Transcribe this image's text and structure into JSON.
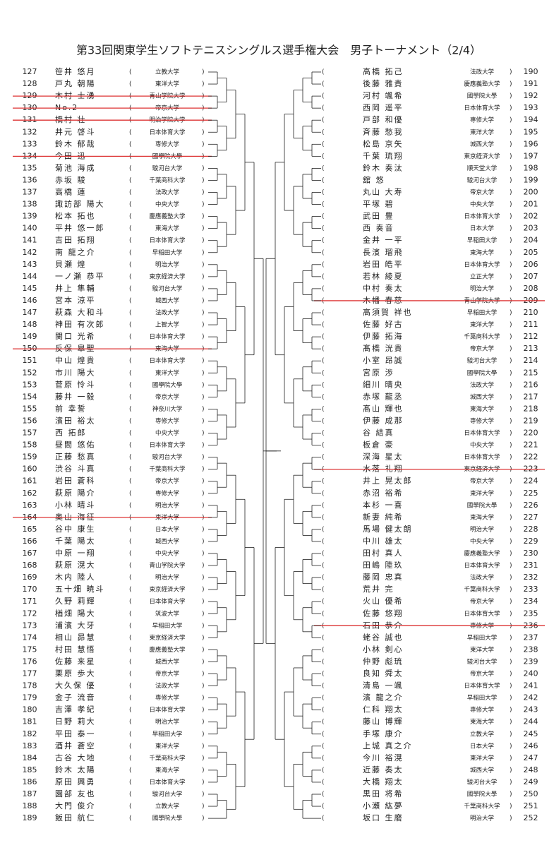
{
  "title": "第33回関東学生ソフトテニスシングルス選手権大会　男子トーナメント（2/4）",
  "left": [
    {
      "no": 127,
      "name": "笹井 悠月",
      "school": "立教大学"
    },
    {
      "no": 128,
      "name": "戸丸 朝陽",
      "school": "東洋大学"
    },
    {
      "no": 129,
      "name": "木村 士湧",
      "school": "青山学院大学",
      "struck": true
    },
    {
      "no": 130,
      "name": "No.2",
      "school": "帝京大学",
      "struck": true
    },
    {
      "no": 131,
      "name": "橋村 壮",
      "school": "明治学院大学",
      "struck": true
    },
    {
      "no": 132,
      "name": "井元 啓斗",
      "school": "日本体育大学"
    },
    {
      "no": 133,
      "name": "鈴木 郁哉",
      "school": "専修大学"
    },
    {
      "no": 134,
      "name": "今田 迅",
      "school": "國學院大學",
      "struck": true
    },
    {
      "no": 135,
      "name": "菊池 海成",
      "school": "駿河台大学"
    },
    {
      "no": 136,
      "name": "赤坂 駿",
      "school": "千葉商科大学"
    },
    {
      "no": 137,
      "name": "高橋 蓮",
      "school": "法政大学"
    },
    {
      "no": 138,
      "name": "諏訪部 陽大",
      "school": "中央大学"
    },
    {
      "no": 139,
      "name": "松本 拓也",
      "school": "慶應義塾大学"
    },
    {
      "no": 140,
      "name": "平井 悠一郎",
      "school": "東海大学"
    },
    {
      "no": 141,
      "name": "吉田 拓翔",
      "school": "日本体育大学"
    },
    {
      "no": 142,
      "name": "南 龍之介",
      "school": "早稲田大学"
    },
    {
      "no": 143,
      "name": "貝瀬 煌",
      "school": "明治大学"
    },
    {
      "no": 144,
      "name": "一ノ瀬 恭平",
      "school": "東京経済大学"
    },
    {
      "no": 145,
      "name": "井上 隼輔",
      "school": "駿河台大学"
    },
    {
      "no": 146,
      "name": "宮本 涼平",
      "school": "城西大学"
    },
    {
      "no": 147,
      "name": "萩森 大和斗",
      "school": "法政大学"
    },
    {
      "no": 148,
      "name": "神田 有次郎",
      "school": "上智大学"
    },
    {
      "no": 149,
      "name": "関口 光希",
      "school": "日本体育大学"
    },
    {
      "no": 150,
      "name": "反保 皐聖",
      "school": "東海大学",
      "struck": true
    },
    {
      "no": 151,
      "name": "中山 煌貴",
      "school": "日本体育大学"
    },
    {
      "no": 152,
      "name": "市川 陽大",
      "school": "東洋大学"
    },
    {
      "no": 153,
      "name": "菅原 怜斗",
      "school": "國學院大學"
    },
    {
      "no": 154,
      "name": "藤井 一毅",
      "school": "帝京大学"
    },
    {
      "no": 155,
      "name": "前 幸誓",
      "school": "神奈川大学"
    },
    {
      "no": 156,
      "name": "濱田 裕太",
      "school": "専修大学"
    },
    {
      "no": 157,
      "name": "西 拓郎",
      "school": "中央大学"
    },
    {
      "no": 158,
      "name": "昼間 悠佑",
      "school": "日本体育大学"
    },
    {
      "no": 159,
      "name": "正藤 愁真",
      "school": "駿河台大学"
    },
    {
      "no": 160,
      "name": "渋谷 斗真",
      "school": "千葉商科大学"
    },
    {
      "no": 161,
      "name": "岩田 蒼科",
      "school": "帝京大学"
    },
    {
      "no": 162,
      "name": "萩原 陽介",
      "school": "専修大学"
    },
    {
      "no": 163,
      "name": "小林 晴斗",
      "school": "明治大学"
    },
    {
      "no": 164,
      "name": "奥山 海征",
      "school": "東洋大学",
      "struck": true
    },
    {
      "no": 165,
      "name": "谷中 康生",
      "school": "日本大学"
    },
    {
      "no": 166,
      "name": "千葉 陽太",
      "school": "城西大学"
    },
    {
      "no": 167,
      "name": "中原 一翔",
      "school": "中央大学"
    },
    {
      "no": 168,
      "name": "萩原 滉大",
      "school": "青山学院大学"
    },
    {
      "no": 169,
      "name": "木内 陸人",
      "school": "明治大学"
    },
    {
      "no": 170,
      "name": "五十畑 暁斗",
      "school": "東京経済大学"
    },
    {
      "no": 171,
      "name": "久野 莉輝",
      "school": "日本体育大学"
    },
    {
      "no": 172,
      "name": "楢畑 陽大",
      "school": "筑波大学"
    },
    {
      "no": 173,
      "name": "浦濱 大牙",
      "school": "早稲田大学"
    },
    {
      "no": 174,
      "name": "相山 昴慧",
      "school": "東京経済大学"
    },
    {
      "no": 175,
      "name": "村田 慧悟",
      "school": "慶應義塾大学"
    },
    {
      "no": 176,
      "name": "佐藤 来星",
      "school": "城西大学"
    },
    {
      "no": 177,
      "name": "栗原 歩大",
      "school": "帝京大学"
    },
    {
      "no": 178,
      "name": "大久保 優",
      "school": "法政大学"
    },
    {
      "no": 179,
      "name": "金子 流音",
      "school": "専修大学"
    },
    {
      "no": 180,
      "name": "吉澤 孝紀",
      "school": "日本体育大学"
    },
    {
      "no": 181,
      "name": "日野 莉大",
      "school": "明治大学"
    },
    {
      "no": 182,
      "name": "平田 泰一",
      "school": "早稲田大学"
    },
    {
      "no": 183,
      "name": "酒井 蒼空",
      "school": "東洋大学"
    },
    {
      "no": 184,
      "name": "古谷 大地",
      "school": "千葉商科大学"
    },
    {
      "no": 185,
      "name": "鈴木 太陽",
      "school": "東海大学"
    },
    {
      "no": 186,
      "name": "原田 興勇",
      "school": "日本体育大学"
    },
    {
      "no": 187,
      "name": "園部 友也",
      "school": "駿河台大学"
    },
    {
      "no": 188,
      "name": "大門 俊介",
      "school": "立教大学"
    },
    {
      "no": 189,
      "name": "飯田 航仁",
      "school": "國學院大學"
    }
  ],
  "right": [
    {
      "no": 190,
      "name": "高橋 拓己",
      "school": "法政大学"
    },
    {
      "no": 191,
      "name": "後藤 雅貴",
      "school": "慶應義塾大学"
    },
    {
      "no": 192,
      "name": "河村 颯希",
      "school": "國學院大學"
    },
    {
      "no": 193,
      "name": "西岡 遥平",
      "school": "日本体育大学"
    },
    {
      "no": 194,
      "name": "戸部 和優",
      "school": "専修大学"
    },
    {
      "no": 195,
      "name": "斉藤 愁我",
      "school": "東洋大学"
    },
    {
      "no": 196,
      "name": "松島 京矢",
      "school": "城西大学"
    },
    {
      "no": 197,
      "name": "千葉 琉翔",
      "school": "東京経済大学"
    },
    {
      "no": 198,
      "name": "鈴木 奏汰",
      "school": "順天堂大学"
    },
    {
      "no": 199,
      "name": "舘 悠",
      "school": "駿河台大学"
    },
    {
      "no": 200,
      "name": "丸山 大寿",
      "school": "帝京大学"
    },
    {
      "no": 201,
      "name": "平塚 碧",
      "school": "中央大学"
    },
    {
      "no": 202,
      "name": "武田 豊",
      "school": "日本体育大学"
    },
    {
      "no": 203,
      "name": "西 奏音",
      "school": "日本大学"
    },
    {
      "no": 204,
      "name": "金井 一平",
      "school": "早稲田大学"
    },
    {
      "no": 205,
      "name": "長濱 瑠飛",
      "school": "東海大学"
    },
    {
      "no": 206,
      "name": "岩田 皓平",
      "school": "日本体育大学"
    },
    {
      "no": 207,
      "name": "若林 綾夏",
      "school": "立正大学"
    },
    {
      "no": 208,
      "name": "中村 奏太",
      "school": "明治大学"
    },
    {
      "no": 209,
      "name": "木幡 春慈",
      "school": "青山学院大学",
      "struck": true
    },
    {
      "no": 210,
      "name": "高須賀 祥也",
      "school": "早稲田大学"
    },
    {
      "no": 211,
      "name": "佐藤 好古",
      "school": "東洋大学"
    },
    {
      "no": 212,
      "name": "伊藤 拓海",
      "school": "千葉商科大学"
    },
    {
      "no": 213,
      "name": "髙橋 洸貴",
      "school": "帝京大学"
    },
    {
      "no": 214,
      "name": "小室 昂誠",
      "school": "駿河台大学"
    },
    {
      "no": 215,
      "name": "宮原 渉",
      "school": "國學院大學"
    },
    {
      "no": 216,
      "name": "細川 晴央",
      "school": "法政大学"
    },
    {
      "no": 217,
      "name": "赤塚 龍丞",
      "school": "城西大学"
    },
    {
      "no": 218,
      "name": "髙山 輝也",
      "school": "東海大学"
    },
    {
      "no": 219,
      "name": "伊藤 成那",
      "school": "専修大学"
    },
    {
      "no": 220,
      "name": "谷 結真",
      "school": "日本体育大学"
    },
    {
      "no": 221,
      "name": "板倉 豪",
      "school": "中央大学"
    },
    {
      "no": 222,
      "name": "深海 星太",
      "school": "日本体育大学"
    },
    {
      "no": 223,
      "name": "水落 礼翔",
      "school": "東京経済大学",
      "struck": true
    },
    {
      "no": 224,
      "name": "井上 晃太郎",
      "school": "帝京大学"
    },
    {
      "no": 225,
      "name": "赤沼 裕希",
      "school": "東洋大学"
    },
    {
      "no": 226,
      "name": "本杉 一喜",
      "school": "國學院大學"
    },
    {
      "no": 227,
      "name": "新妻 純希",
      "school": "東海大学"
    },
    {
      "no": 228,
      "name": "馬場 健太朗",
      "school": "明治大学"
    },
    {
      "no": 229,
      "name": "中川 雄太",
      "school": "中央大学"
    },
    {
      "no": 230,
      "name": "田村 真人",
      "school": "慶應義塾大学"
    },
    {
      "no": 231,
      "name": "田嶋 陸玖",
      "school": "日本体育大学"
    },
    {
      "no": 232,
      "name": "藤岡 忠真",
      "school": "法政大学"
    },
    {
      "no": 233,
      "name": "荒井 完",
      "school": "千葉商科大学"
    },
    {
      "no": 234,
      "name": "火山 優希",
      "school": "帝京大学"
    },
    {
      "no": 235,
      "name": "佐藤 悠翔",
      "school": "日本体育大学"
    },
    {
      "no": 236,
      "name": "石田 恭介",
      "school": "専修大学",
      "struck": true
    },
    {
      "no": 237,
      "name": "蛯谷 誠也",
      "school": "早稲田大学"
    },
    {
      "no": 238,
      "name": "小林 剣心",
      "school": "東洋大学"
    },
    {
      "no": 239,
      "name": "仲野 彪琉",
      "school": "駿河台大学"
    },
    {
      "no": 240,
      "name": "良知 舜太",
      "school": "帝京大学"
    },
    {
      "no": 241,
      "name": "清島 一颯",
      "school": "日本体育大学"
    },
    {
      "no": 242,
      "name": "濱 龍之介",
      "school": "早稲田大学"
    },
    {
      "no": 243,
      "name": "仁科 翔太",
      "school": "専修大学"
    },
    {
      "no": 244,
      "name": "藤山 博輝",
      "school": "東海大学"
    },
    {
      "no": 245,
      "name": "手塚 康介",
      "school": "立教大学"
    },
    {
      "no": 246,
      "name": "上城 真之介",
      "school": "日本大学"
    },
    {
      "no": 247,
      "name": "今川 裕滉",
      "school": "東洋大学"
    },
    {
      "no": 248,
      "name": "近藤 奏太",
      "school": "城西大学"
    },
    {
      "no": 249,
      "name": "大橋 翔太",
      "school": "駿河台大学"
    },
    {
      "no": 250,
      "name": "黒田 将希",
      "school": "國學院大學"
    },
    {
      "no": 251,
      "name": "小瀬 紘夢",
      "school": "千葉商科大学"
    },
    {
      "no": 252,
      "name": "坂口 生磨",
      "school": "明治大学"
    }
  ]
}
